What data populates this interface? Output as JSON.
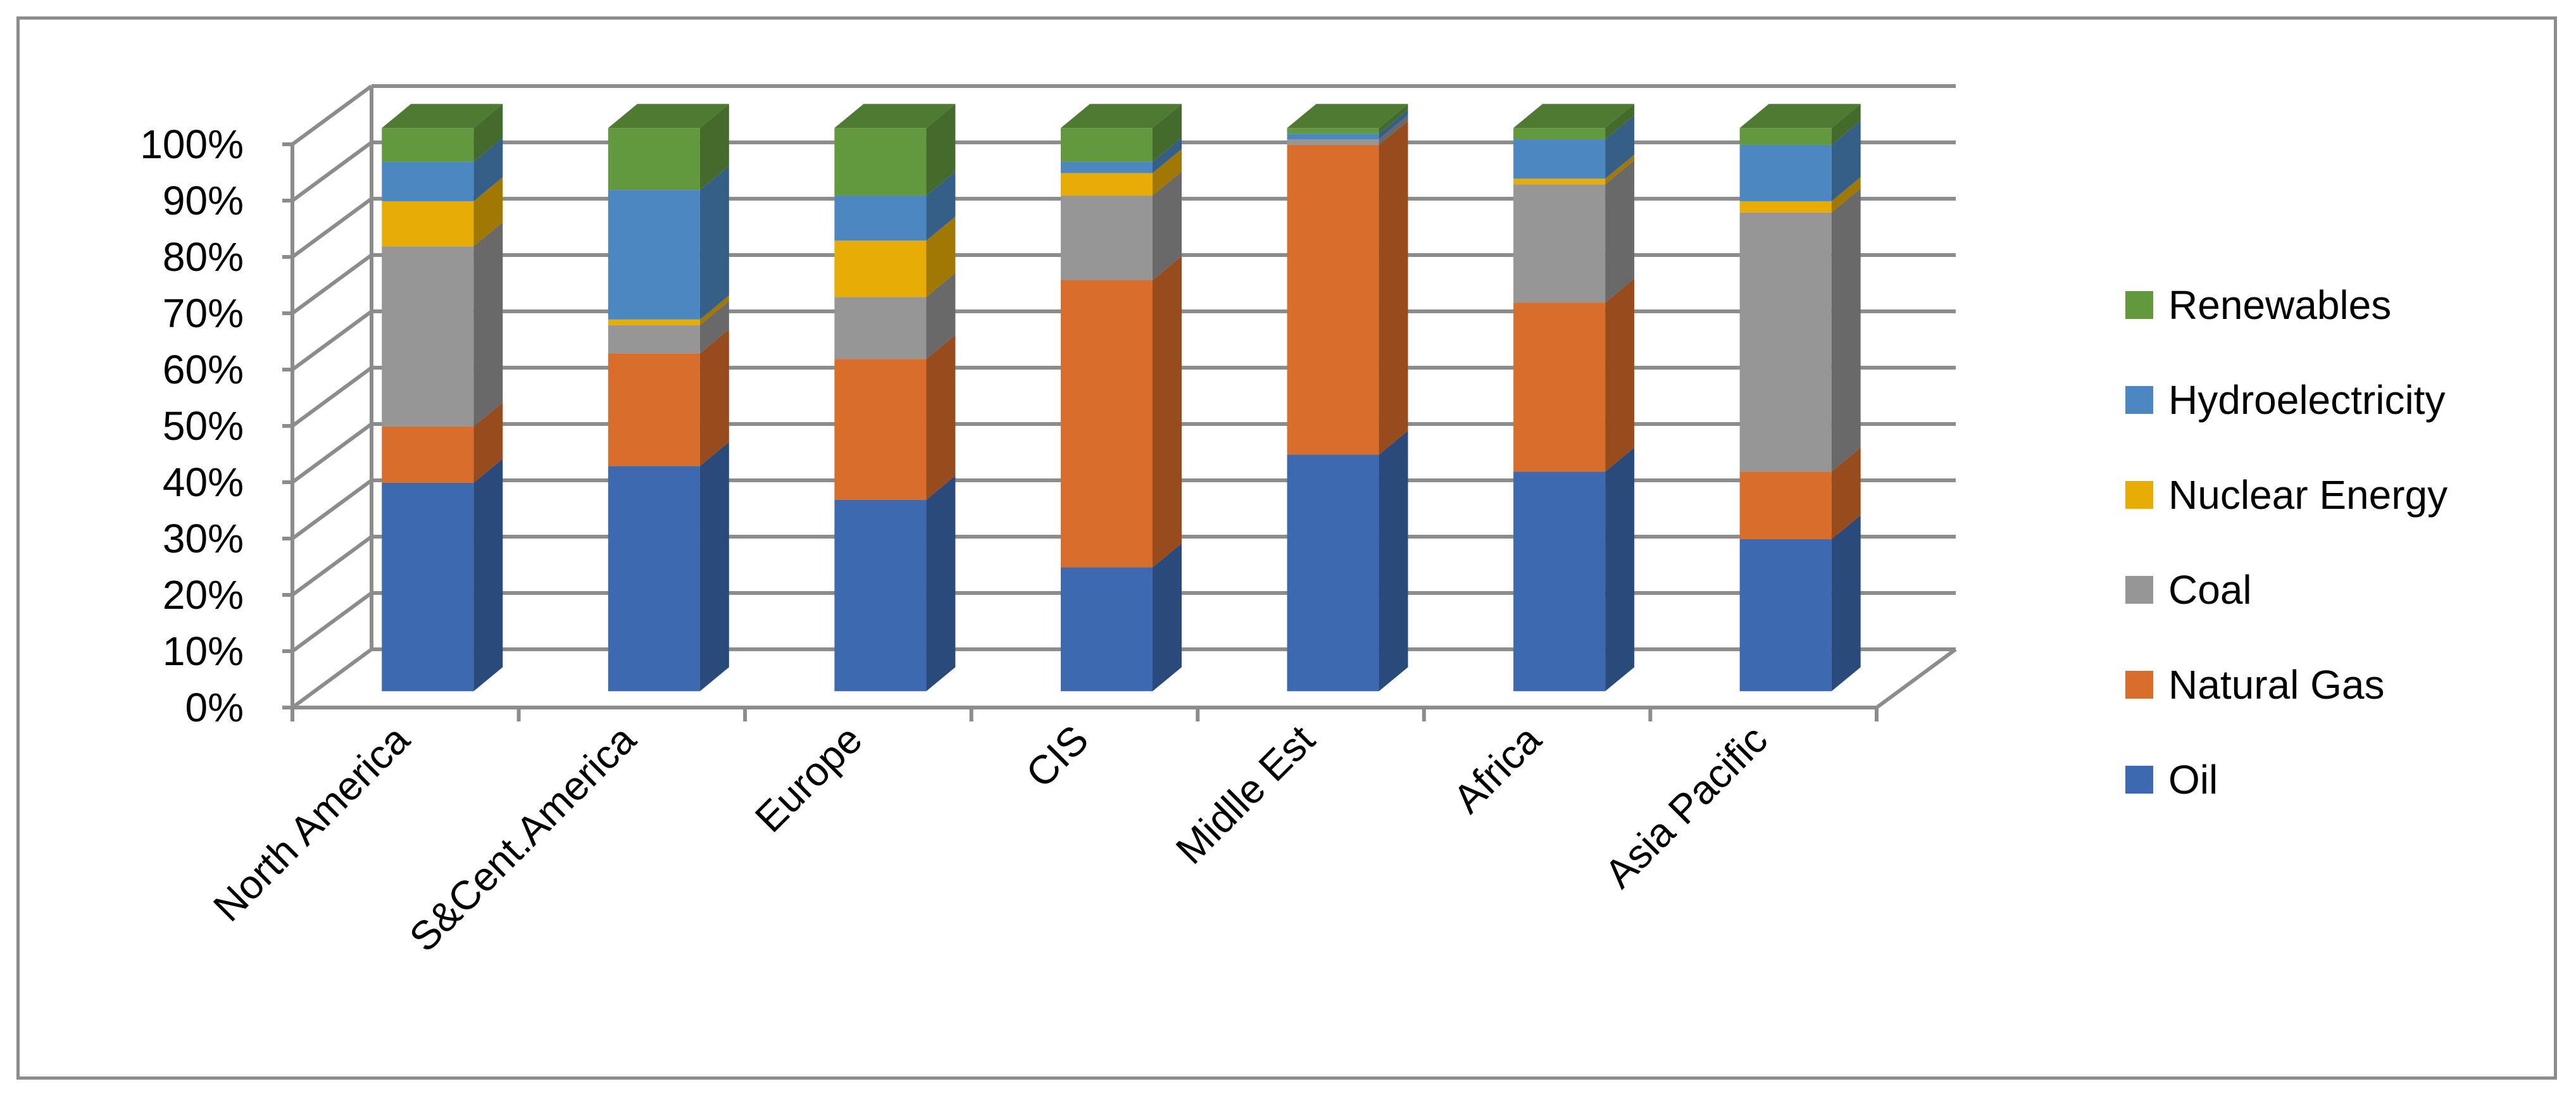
{
  "chart_data": {
    "type": "bar",
    "stacked": true,
    "percent": true,
    "three_d": true,
    "categories": [
      "North America",
      "S&Cent.America",
      "Europe",
      "CIS",
      "Midlle Est",
      "Africa",
      "Asia Pacific"
    ],
    "series": [
      {
        "name": "Oil",
        "color": "#3d69b1",
        "values": [
          37,
          40,
          34,
          22,
          42,
          39,
          27
        ]
      },
      {
        "name": "Natural Gas",
        "color": "#d96d2b",
        "values": [
          10,
          20,
          25,
          51,
          55,
          30,
          12
        ]
      },
      {
        "name": "Coal",
        "color": "#969696",
        "values": [
          32,
          5,
          11,
          15,
          1,
          21,
          46
        ]
      },
      {
        "name": "Nuclear Energy",
        "color": "#e7ac05",
        "values": [
          8,
          1,
          10,
          4,
          0,
          1,
          2
        ]
      },
      {
        "name": "Hydroelectricity",
        "color": "#4d87c2",
        "values": [
          7,
          23,
          8,
          2,
          1,
          7,
          10
        ]
      },
      {
        "name": "Renewables",
        "color": "#62993f",
        "values": [
          6,
          11,
          12,
          6,
          1,
          2,
          3
        ]
      }
    ],
    "yticks": [
      "0%",
      "10%",
      "20%",
      "30%",
      "40%",
      "50%",
      "60%",
      "70%",
      "80%",
      "90%",
      "100%"
    ],
    "ylim": [
      0,
      100
    ],
    "grid": true,
    "legend_position": "right",
    "legend_order": [
      "Renewables",
      "Hydroelectricity",
      "Nuclear Energy",
      "Coal",
      "Natural Gas",
      "Oil"
    ],
    "title": "",
    "xlabel": "",
    "ylabel": ""
  }
}
